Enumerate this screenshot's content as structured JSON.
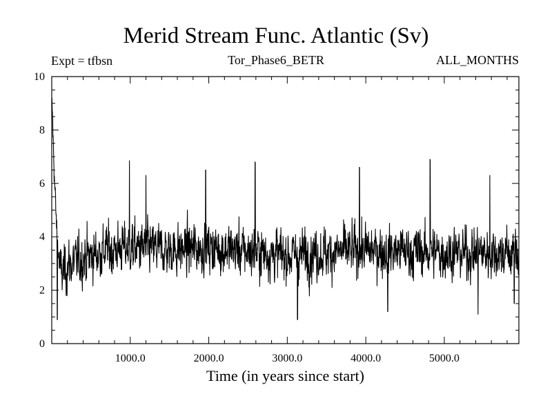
{
  "chart_data": {
    "type": "line",
    "title": "Merid Stream Func. Atlantic (Sv)",
    "subtitle_left": "Expt = tfbsn",
    "subtitle_center": "Tor_Phase6_BETR",
    "subtitle_right": "ALL_MONTHS",
    "xlabel": "Time (in years since start)",
    "ylabel": "",
    "xlim": [
      0,
      5950
    ],
    "ylim": [
      0,
      10
    ],
    "x_ticks": [
      1000,
      2000,
      3000,
      4000,
      5000
    ],
    "x_tick_labels": [
      "1000.0",
      "2000.0",
      "3000.0",
      "4000.0",
      "5000.0"
    ],
    "y_ticks": [
      0,
      2,
      4,
      6,
      8,
      10
    ],
    "y_tick_labels": [
      "0",
      "2",
      "4",
      "6",
      "8",
      "10"
    ],
    "grid": false,
    "series": [
      {
        "name": "Merid Stream Func. Atlantic",
        "description": "noisy annual series; initial spike near 9 Sv decaying to ~2.5 Sv by year ~100, then fluctuating around ~3.4 Sv with peaks to ~7 and dips to ~1",
        "anchor_x": [
          0,
          8,
          20,
          40,
          60,
          90,
          120,
          200,
          400,
          700,
          1000,
          1500,
          2000,
          3000,
          4000,
          5000,
          5950
        ],
        "anchor_mean": [
          9.0,
          8.6,
          7.4,
          5.8,
          4.4,
          3.2,
          2.6,
          2.9,
          3.2,
          3.5,
          3.6,
          3.5,
          3.6,
          3.3,
          3.5,
          3.4,
          3.4
        ],
        "peaks": [
          [
            990,
            6.85
          ],
          [
            1200,
            6.3
          ],
          [
            1960,
            6.5
          ],
          [
            2590,
            6.8
          ],
          [
            3920,
            6.6
          ],
          [
            4820,
            6.9
          ],
          [
            5580,
            6.3
          ]
        ],
        "dips": [
          [
            70,
            0.9
          ],
          [
            3130,
            0.9
          ],
          [
            4280,
            1.2
          ],
          [
            5430,
            1.1
          ],
          [
            5890,
            1.5
          ]
        ],
        "color": "#000000"
      }
    ]
  }
}
